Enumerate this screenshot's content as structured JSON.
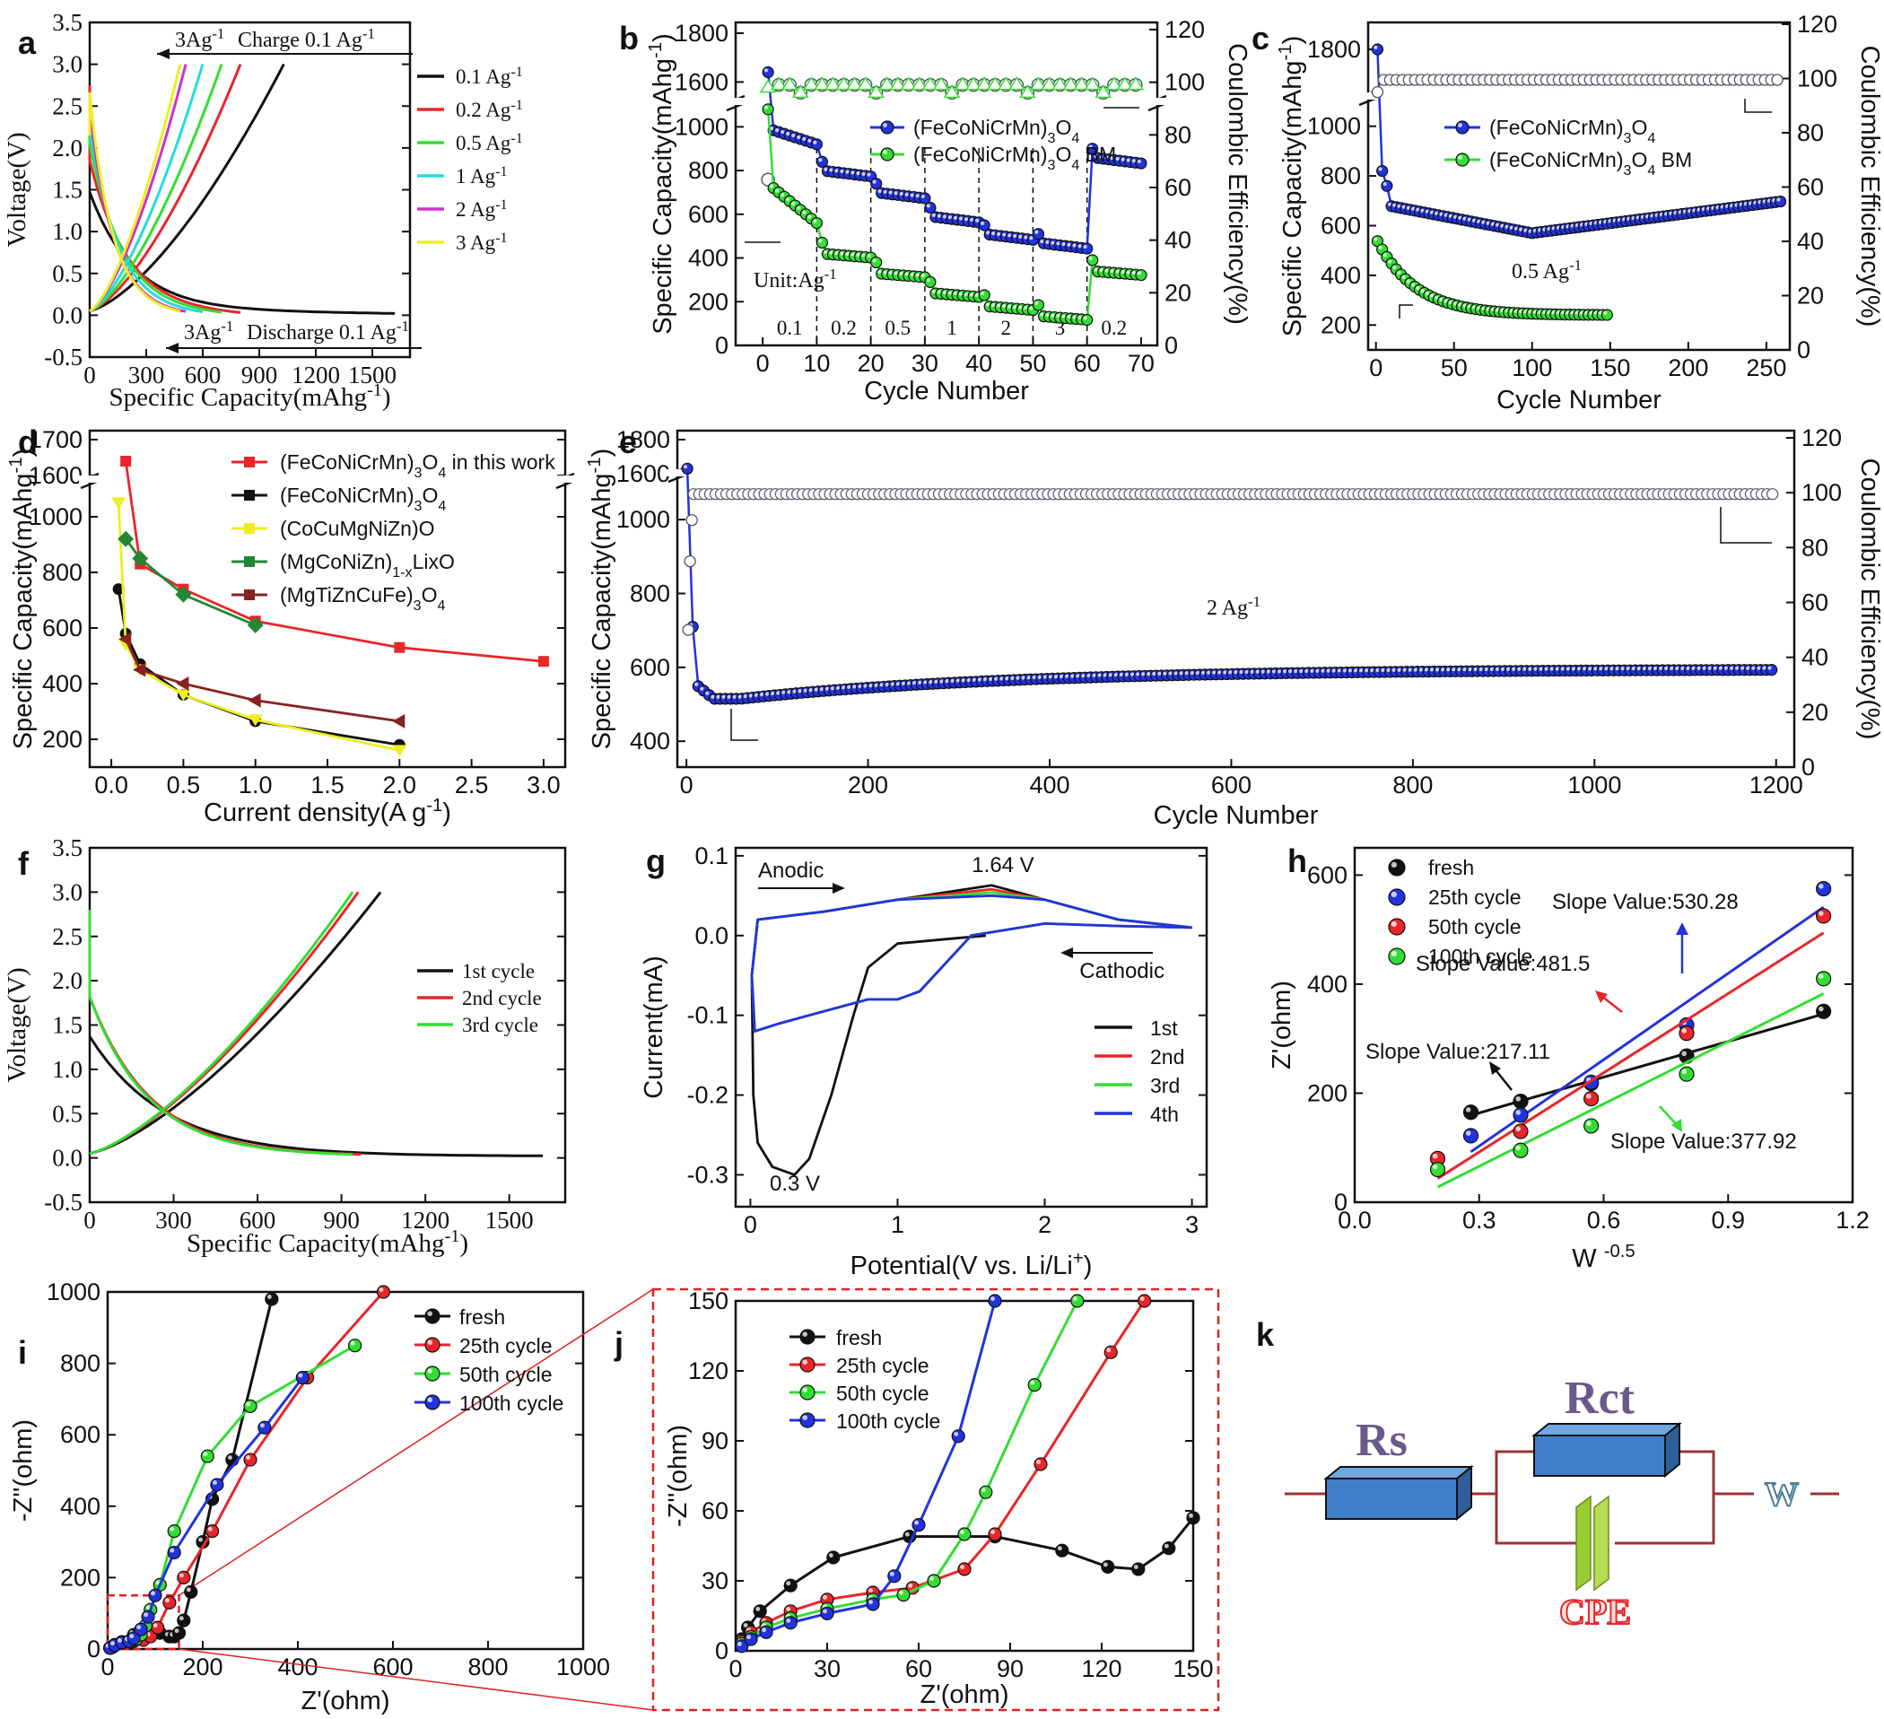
{
  "colors": {
    "black": "#111111",
    "red": "#e8262a",
    "green": "#33dd33",
    "blue": "#2233dd",
    "cyan": "#22dddd",
    "magenta": "#cc33cc",
    "yellow": "#eeee22",
    "darkred": "#882222",
    "darkgreen": "#228833",
    "dashed_red": "#dd2222",
    "circuit_wire": "#993333",
    "resistor_fill": "#3f7fc9",
    "cpe_fill": "#99cc33"
  },
  "chart_data": [
    {
      "panel": "a",
      "type": "line",
      "xlabel": "Specific Capacity(mAhg-1)",
      "ylabel": "Voltage(V)",
      "xlim": [
        0,
        1700
      ],
      "ylim": [
        -0.5,
        3.5
      ],
      "xticks": [
        "0",
        "300",
        "600",
        "900",
        "1200",
        "1500"
      ],
      "yticks": [
        "-0.5",
        "0.0",
        "0.5",
        "1.0",
        "1.5",
        "2.0",
        "2.5",
        "3.0",
        "3.5"
      ],
      "annotations": [
        "3Ag-1",
        "Charge 0.1 Ag-1",
        "3Ag-1",
        "Discharge 0.1 Ag-1"
      ],
      "series": [
        {
          "name": "0.1 Ag-1",
          "charge_max": 1030,
          "discharge_max": 1620
        },
        {
          "name": "0.2 Ag-1",
          "charge_max": 800,
          "discharge_max": 800
        },
        {
          "name": "0.5 Ag-1",
          "charge_max": 700,
          "discharge_max": 700
        },
        {
          "name": "1 Ag-1",
          "charge_max": 600,
          "discharge_max": 600
        },
        {
          "name": "2 Ag-1",
          "charge_max": 510,
          "discharge_max": 510
        },
        {
          "name": "3 Ag-1",
          "charge_max": 480,
          "discharge_max": 480
        }
      ]
    },
    {
      "panel": "b",
      "type": "scatter",
      "xlabel": "Cycle Number",
      "ylabel": "Specific Capacity(mAhg-1)",
      "ylabel2": "Coulombic Efficiency(%)",
      "xlim": [
        -5,
        73
      ],
      "xticks": [
        "0",
        "10",
        "20",
        "30",
        "40",
        "50",
        "60",
        "70"
      ],
      "yticks": [
        "0",
        "200",
        "400",
        "600",
        "800",
        "1000",
        "1600",
        "1800"
      ],
      "y2ticks": [
        "0",
        "20",
        "40",
        "60",
        "80",
        "100",
        "120"
      ],
      "rate_labels": [
        "0.1",
        "0.2",
        "0.5",
        "1",
        "2",
        "3",
        "0.2"
      ],
      "rate_boundaries": [
        10,
        20,
        30,
        40,
        50,
        60
      ],
      "annotations": [
        "Unit:Ag-1"
      ],
      "series": [
        {
          "name": "(FeCoNiCrMn)3O4",
          "levels": [
            920,
            800,
            700,
            590,
            510,
            470,
            860
          ],
          "first": 1640
        },
        {
          "name": "(FeCoNiCrMn)3O4 BM",
          "levels": [
            560,
            420,
            330,
            240,
            180,
            135,
            340
          ],
          "first": 1080
        }
      ]
    },
    {
      "panel": "c",
      "type": "scatter",
      "xlabel": "Cycle Number",
      "ylabel": "Specific Capacity(mAhg-1)",
      "ylabel2": "Coulombic Efficiency(%)",
      "xlim": [
        -5,
        265
      ],
      "xticks": [
        "0",
        "50",
        "100",
        "150",
        "200",
        "250"
      ],
      "yticks": [
        "200",
        "400",
        "600",
        "800",
        "1000",
        "1800"
      ],
      "y2ticks": [
        "0",
        "20",
        "40",
        "60",
        "80",
        "100",
        "120"
      ],
      "annotations": [
        "0.5 Ag-1"
      ],
      "series": [
        {
          "name": "(FeCoNiCrMn)3O4",
          "start": 1800,
          "min": 570,
          "end": 690
        },
        {
          "name": "(FeCoNiCrMn)3O4 BM",
          "start": 550,
          "end": 240
        }
      ]
    },
    {
      "panel": "d",
      "type": "line",
      "xlabel": "Current density(A g-1)",
      "ylabel": "Specific Capacity(mAhg-1)",
      "xticks": [
        "0.0",
        "0.5",
        "1.0",
        "1.5",
        "2.0",
        "2.5",
        "3.0"
      ],
      "yticks": [
        "200",
        "400",
        "600",
        "800",
        "1000",
        "1600",
        "1700"
      ],
      "series": [
        {
          "name": "(FeCoNiCrMn)3O4 in this work",
          "x": [
            0.1,
            0.2,
            0.5,
            1.0,
            2.0,
            3.0
          ],
          "y": [
            1640,
            830,
            740,
            625,
            530,
            480
          ]
        },
        {
          "name": "(FeCoNiCrMn)3O4",
          "x": [
            0.05,
            0.1,
            0.2,
            0.5,
            1.0,
            2.0
          ],
          "y": [
            740,
            580,
            470,
            360,
            265,
            180
          ]
        },
        {
          "name": "(CoCuMgNiZn)O",
          "x": [
            0.05,
            0.1,
            0.2,
            0.5,
            1.0,
            2.0
          ],
          "y": [
            1050,
            540,
            450,
            360,
            270,
            160
          ]
        },
        {
          "name": "(MgCoNiZn)1-xLixO",
          "x": [
            0.1,
            0.2,
            0.5,
            1.0
          ],
          "y": [
            920,
            850,
            720,
            610
          ]
        },
        {
          "name": "(MgTiZnCuFe)3O4",
          "x": [
            0.1,
            0.2,
            0.5,
            1.0,
            2.0
          ],
          "y": [
            560,
            450,
            400,
            340,
            265
          ]
        }
      ]
    },
    {
      "panel": "e",
      "type": "scatter",
      "xlabel": "Cycle Number",
      "ylabel": "Specific Capacity(mAhg-1)",
      "ylabel2": "Coulombic Efficiency(%)",
      "xticks": [
        "0",
        "200",
        "400",
        "600",
        "800",
        "1000",
        "1200"
      ],
      "yticks": [
        "400",
        "600",
        "800",
        "1000",
        "1600",
        "1800"
      ],
      "y2ticks": [
        "0",
        "20",
        "40",
        "60",
        "80",
        "100",
        "120"
      ],
      "annotations": [
        "2 Ag-1"
      ],
      "series": [
        {
          "name": "capacity",
          "start": 1630,
          "min": 515,
          "end": 595
        },
        {
          "name": "coulombic_efficiency",
          "first": [
            50,
            75,
            90
          ],
          "level": 99.5
        }
      ]
    },
    {
      "panel": "f",
      "type": "line",
      "xlabel": "Specific Capacity(mAhg-1)",
      "ylabel": "Voltage(V)",
      "xticks": [
        "0",
        "300",
        "600",
        "900",
        "1200",
        "1500"
      ],
      "yticks": [
        "-0.5",
        "0.0",
        "0.5",
        "1.0",
        "1.5",
        "2.0",
        "2.5",
        "3.0",
        "3.5"
      ],
      "series": [
        {
          "name": "1st cycle",
          "charge_max": 1040,
          "discharge_max": 1620
        },
        {
          "name": "2nd cycle",
          "charge_max": 960,
          "discharge_max": 970
        },
        {
          "name": "3rd cycle",
          "charge_max": 940,
          "discharge_max": 940
        }
      ]
    },
    {
      "panel": "g",
      "type": "line",
      "xlabel": "Potential(V vs. Li/Li+)",
      "ylabel": "Current(mA)",
      "xticks": [
        "0",
        "1",
        "2",
        "3"
      ],
      "yticks": [
        "-0.3",
        "-0.2",
        "-0.1",
        "0.0",
        "0.1"
      ],
      "annotations": [
        "Anodic",
        "1.64 V",
        "Cathodic",
        "0.3 V"
      ],
      "series": [
        {
          "name": "1st"
        },
        {
          "name": "2nd"
        },
        {
          "name": "3rd"
        },
        {
          "name": "4th"
        }
      ]
    },
    {
      "panel": "h",
      "type": "scatter",
      "xlabel": "W -0.5",
      "ylabel": "Z'(ohm)",
      "xticks": [
        "0.0",
        "0.3",
        "0.6",
        "0.9",
        "1.2"
      ],
      "yticks": [
        "0",
        "200",
        "400",
        "600"
      ],
      "x": [
        0.28,
        0.4,
        0.57,
        0.8,
        1.13
      ],
      "series": [
        {
          "name": "fresh",
          "y": [
            165,
            185,
            218,
            268,
            350
          ],
          "slope_label": "Slope Value:217.11"
        },
        {
          "name": "25th cycle",
          "y": [
            122,
            160,
            220,
            325,
            575
          ],
          "slope_label": "Slope Value:530.28"
        },
        {
          "name": "50th cycle",
          "y": [
            80,
            130,
            190,
            310,
            525
          ],
          "slope_label": "Slope Value:481.5"
        },
        {
          "name": "100th cycle",
          "y": [
            60,
            95,
            140,
            235,
            410
          ],
          "slope_label": "Slope Value:377.92"
        }
      ],
      "series_x_first": [
        0.2,
        0.28
      ]
    },
    {
      "panel": "i",
      "type": "line",
      "xlabel": "Z'(ohm)",
      "ylabel": "-Z''(ohm)",
      "xticks": [
        "0",
        "200",
        "400",
        "600",
        "800",
        "1000"
      ],
      "yticks": [
        "0",
        "200",
        "400",
        "600",
        "800",
        "1000"
      ],
      "series": [
        {
          "name": "fresh",
          "x": [
            10,
            30,
            55,
            85,
            110,
            130,
            140,
            150,
            160,
            175,
            200,
            220,
            262,
            345
          ],
          "y": [
            5,
            20,
            40,
            50,
            45,
            35,
            35,
            45,
            80,
            160,
            300,
            420,
            530,
            980
          ]
        },
        {
          "name": "25th cycle",
          "x": [
            5,
            15,
            30,
            55,
            75,
            90,
            105,
            130,
            160,
            220,
            300,
            420,
            580
          ],
          "y": [
            3,
            12,
            18,
            22,
            25,
            35,
            60,
            130,
            200,
            330,
            530,
            760,
            1000
          ]
        },
        {
          "name": "50th cycle",
          "x": [
            5,
            15,
            30,
            50,
            60,
            70,
            80,
            90,
            110,
            140,
            210,
            300,
            520
          ],
          "y": [
            3,
            10,
            18,
            22,
            28,
            40,
            65,
            110,
            180,
            330,
            540,
            680,
            850
          ]
        },
        {
          "name": "100th cycle",
          "x": [
            5,
            15,
            30,
            45,
            55,
            70,
            85,
            100,
            140,
            230,
            330,
            410
          ],
          "y": [
            3,
            10,
            18,
            22,
            30,
            55,
            90,
            150,
            270,
            460,
            620,
            760
          ]
        }
      ]
    },
    {
      "panel": "j",
      "type": "line",
      "xlabel": "Z'(ohm)",
      "ylabel": "-Z''(ohm)",
      "xticks": [
        "0",
        "30",
        "60",
        "90",
        "120",
        "150"
      ],
      "yticks": [
        "0",
        "30",
        "60",
        "90",
        "120",
        "150"
      ],
      "series": [
        {
          "name": "fresh",
          "x": [
            2,
            4,
            8,
            18,
            32,
            57,
            85,
            107,
            122,
            132,
            142,
            150
          ],
          "y": [
            5,
            10,
            17,
            28,
            40,
            49,
            49,
            43,
            36,
            35,
            44,
            57
          ]
        },
        {
          "name": "25th cycle",
          "x": [
            2,
            5,
            10,
            18,
            30,
            45,
            58,
            75,
            85,
            100,
            123,
            134
          ],
          "y": [
            4,
            8,
            12,
            17,
            22,
            25,
            27,
            35,
            50,
            80,
            128,
            150
          ]
        },
        {
          "name": "50th cycle",
          "x": [
            2,
            5,
            10,
            18,
            30,
            45,
            55,
            65,
            75,
            82,
            98,
            112
          ],
          "y": [
            3,
            6,
            10,
            14,
            18,
            22,
            24,
            30,
            50,
            68,
            114,
            150
          ]
        },
        {
          "name": "100th cycle",
          "x": [
            2,
            5,
            10,
            18,
            30,
            45,
            52,
            60,
            73,
            85
          ],
          "y": [
            2,
            5,
            8,
            12,
            16,
            20,
            32,
            54,
            92,
            150
          ]
        }
      ]
    }
  ],
  "circuit_k": {
    "panel": "k",
    "labels": {
      "rs": "Rs",
      "rct": "Rct",
      "w": "W",
      "cpe": "CPE"
    }
  }
}
